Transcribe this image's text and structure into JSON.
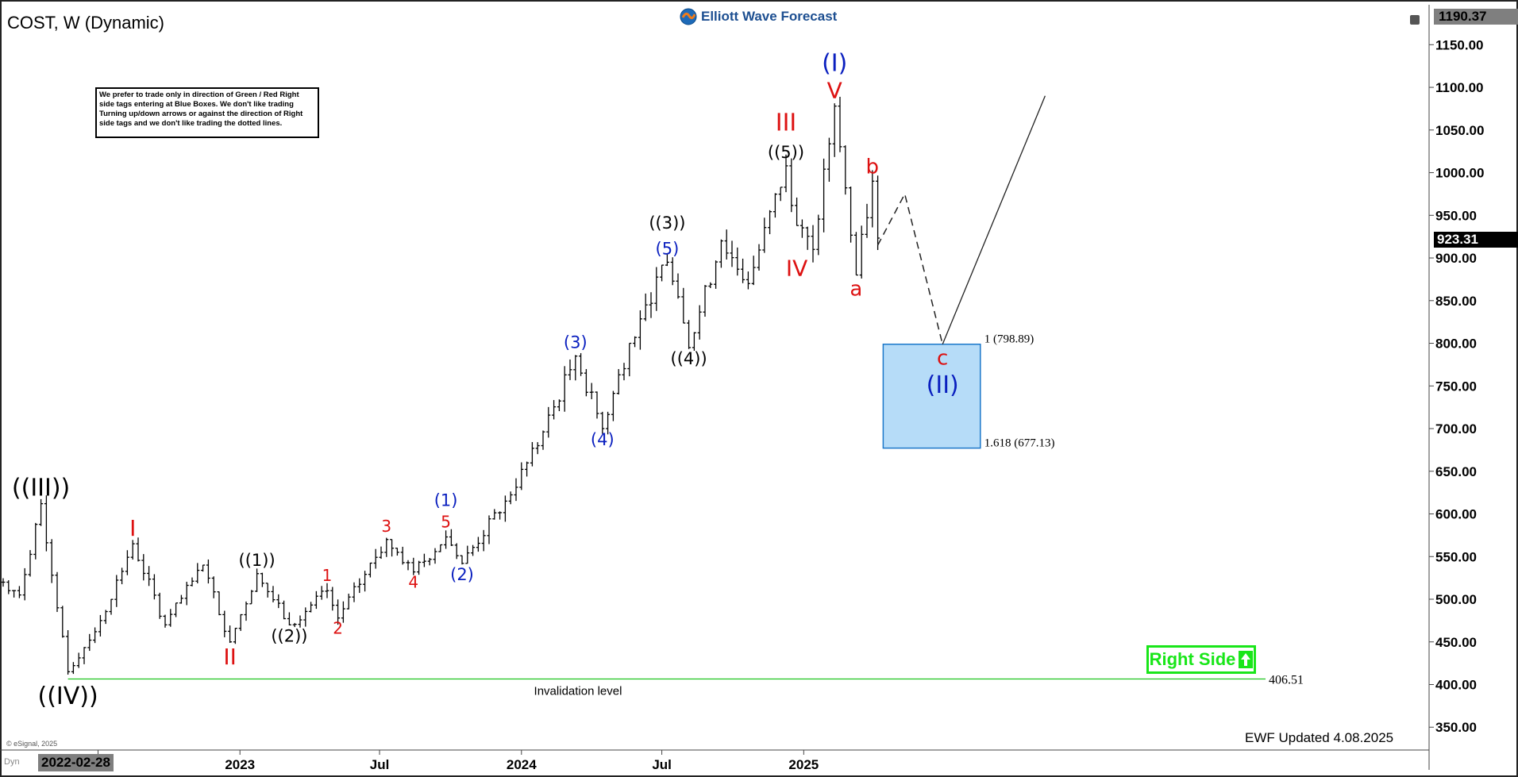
{
  "header": {
    "title": "COST, W (Dynamic)",
    "logo_text": "Elliott Wave Forecast",
    "disclaimer": "We prefer to trade only in direction of Green / Red Right side tags entering at Blue Boxes. We don't like trading Turning up/down arrows or against the direction of Right side tags and we don't like trading the dotted lines."
  },
  "footer": {
    "updated": "EWF Updated 4.08.2025",
    "copyright": "© eSignal, 2025",
    "dyn": "Dyn",
    "start_date": "2022-02-28"
  },
  "price_tags": {
    "top": "1190.37",
    "last": "923.31"
  },
  "colors": {
    "wave_red": "#dd1111",
    "wave_blue": "#0a1fbf",
    "box_fill": "#b6dcf8",
    "box_stroke": "#1a77c9",
    "right_side": "#19e619",
    "invalidation": "#1ec41e"
  },
  "right_side_label": "Right Side",
  "chart_data": {
    "type": "ohlc",
    "yaxis": {
      "ticks": [
        1150,
        1100,
        1050,
        1000,
        950,
        900,
        850,
        800,
        750,
        700,
        650,
        600,
        550,
        500,
        450,
        400,
        350
      ],
      "tick_labels": [
        "1150.00",
        "1100.00",
        "1050.00",
        "1000.00",
        "950.00",
        "900.00",
        "850.00",
        "800.00",
        "750.00",
        "700.00",
        "650.00",
        "600.00",
        "550.00",
        "500.00",
        "450.00",
        "400.00",
        "350.00"
      ],
      "range": [
        325,
        1190.37
      ]
    },
    "xaxis": {
      "start": "2022-02-28",
      "ticks": [
        {
          "date": "2022-07-01",
          "label": "Jul"
        },
        {
          "date": "2023-01-01",
          "label": "2023"
        },
        {
          "date": "2023-07-01",
          "label": "Jul"
        },
        {
          "date": "2024-01-01",
          "label": "2024"
        },
        {
          "date": "2024-07-01",
          "label": "Jul"
        },
        {
          "date": "2025-01-01",
          "label": "2025"
        }
      ]
    },
    "anchors": [
      [
        "2022-02-28",
        520
      ],
      [
        "2022-03-21",
        505
      ],
      [
        "2022-04-18",
        612
      ],
      [
        "2022-05-23",
        415
      ],
      [
        "2022-07-04",
        475
      ],
      [
        "2022-08-15",
        565
      ],
      [
        "2022-09-26",
        470
      ],
      [
        "2022-11-14",
        540
      ],
      [
        "2022-12-19",
        450
      ],
      [
        "2023-01-23",
        530
      ],
      [
        "2023-03-06",
        470
      ],
      [
        "2023-04-24",
        510
      ],
      [
        "2023-05-08",
        478
      ],
      [
        "2023-07-10",
        570
      ],
      [
        "2023-08-14",
        532
      ],
      [
        "2023-09-25",
        573
      ],
      [
        "2023-10-16",
        542
      ],
      [
        "2023-12-11",
        615
      ],
      [
        "2024-01-22",
        680
      ],
      [
        "2024-03-11",
        785
      ],
      [
        "2024-04-15",
        700
      ],
      [
        "2024-05-20",
        800
      ],
      [
        "2024-06-10",
        845
      ],
      [
        "2024-07-08",
        895
      ],
      [
        "2024-08-05",
        795
      ],
      [
        "2024-09-16",
        920
      ],
      [
        "2024-10-21",
        870
      ],
      [
        "2024-12-09",
        1008
      ],
      [
        "2024-12-23",
        938
      ],
      [
        "2025-01-13",
        910
      ],
      [
        "2025-02-10",
        1078
      ],
      [
        "2025-03-10",
        880
      ],
      [
        "2025-03-31",
        990
      ],
      [
        "2025-04-07",
        923.31
      ]
    ],
    "projection": {
      "dashed": [
        [
          "2025-04-07",
          915
        ],
        [
          "2025-05-12",
          975
        ],
        [
          "2025-06-30",
          798.89
        ]
      ],
      "solid": [
        [
          "2025-06-30",
          798.89
        ],
        [
          "2025-11-10",
          1090
        ]
      ]
    },
    "target_box": {
      "start": "2025-04-14",
      "end": "2025-08-18",
      "top": 798.89,
      "bottom": 677.13,
      "top_label": "1 (798.89)",
      "bottom_label": "1.618 (677.13)"
    },
    "invalidation": {
      "value": 406.51,
      "value_label": "406.51",
      "label": "Invalidation level",
      "start": "2022-05-23",
      "end": "2025-05-12"
    },
    "wave_labels": [
      {
        "text": "((III))",
        "date": "2022-04-18",
        "price": 612,
        "pos": "above",
        "color": "black",
        "size": 30
      },
      {
        "text": "((IV))",
        "date": "2022-05-23",
        "price": 405,
        "pos": "below",
        "color": "black",
        "size": 30
      },
      {
        "text": "I",
        "date": "2022-08-15",
        "price": 565,
        "pos": "above",
        "color": "red",
        "size": 28
      },
      {
        "text": "II",
        "date": "2022-12-19",
        "price": 450,
        "pos": "below",
        "color": "red",
        "size": 28
      },
      {
        "text": "((1))",
        "date": "2023-01-23",
        "price": 530,
        "pos": "above",
        "color": "black",
        "size": 21
      },
      {
        "text": "((2))",
        "date": "2023-03-06",
        "price": 470,
        "pos": "below",
        "color": "black",
        "size": 21
      },
      {
        "text": "1",
        "date": "2023-04-24",
        "price": 512,
        "pos": "above",
        "color": "red",
        "size": 20
      },
      {
        "text": "2",
        "date": "2023-05-08",
        "price": 478,
        "pos": "below",
        "color": "red",
        "size": 20
      },
      {
        "text": "3",
        "date": "2023-07-10",
        "price": 570,
        "pos": "above",
        "color": "red",
        "size": 20
      },
      {
        "text": "4",
        "date": "2023-08-14",
        "price": 532,
        "pos": "below",
        "color": "red",
        "size": 20
      },
      {
        "text": "5",
        "date": "2023-09-25",
        "price": 575,
        "pos": "above",
        "color": "red",
        "size": 20
      },
      {
        "text": "(1)",
        "date": "2023-09-25",
        "price": 600,
        "pos": "above",
        "color": "blue",
        "size": 21
      },
      {
        "text": "(2)",
        "date": "2023-10-16",
        "price": 542,
        "pos": "below",
        "color": "blue",
        "size": 21
      },
      {
        "text": "(3)",
        "date": "2024-03-11",
        "price": 785,
        "pos": "above",
        "color": "blue",
        "size": 21
      },
      {
        "text": "(4)",
        "date": "2024-04-15",
        "price": 700,
        "pos": "below",
        "color": "blue",
        "size": 21
      },
      {
        "text": "(5)",
        "date": "2024-07-08",
        "price": 895,
        "pos": "above",
        "color": "blue",
        "size": 21
      },
      {
        "text": "((3))",
        "date": "2024-07-08",
        "price": 925,
        "pos": "above",
        "color": "black",
        "size": 21
      },
      {
        "text": "((4))",
        "date": "2024-08-05",
        "price": 795,
        "pos": "below",
        "color": "black",
        "size": 21
      },
      {
        "text": "((5))",
        "date": "2024-12-09",
        "price": 1008,
        "pos": "above",
        "color": "black",
        "size": 21
      },
      {
        "text": "III",
        "date": "2024-12-09",
        "price": 1040,
        "pos": "above",
        "color": "red",
        "size": 30
      },
      {
        "text": "IV",
        "date": "2024-12-23",
        "price": 905,
        "pos": "below",
        "color": "red",
        "size": 28
      },
      {
        "text": "V",
        "date": "2025-02-10",
        "price": 1078,
        "pos": "above",
        "color": "red",
        "size": 28
      },
      {
        "text": "(I)",
        "date": "2025-02-10",
        "price": 1110,
        "pos": "above",
        "color": "blue",
        "size": 30
      },
      {
        "text": "a",
        "date": "2025-03-10",
        "price": 880,
        "pos": "below",
        "color": "red",
        "size": 26
      },
      {
        "text": "b",
        "date": "2025-03-31",
        "price": 990,
        "pos": "above",
        "color": "red",
        "size": 26
      },
      {
        "text": "c",
        "date": "2025-06-30",
        "price": 798.89,
        "pos": "below",
        "color": "red",
        "size": 26
      },
      {
        "text": "(II)",
        "date": "2025-06-30",
        "price": 770,
        "pos": "below",
        "color": "blue",
        "size": 30
      }
    ]
  }
}
